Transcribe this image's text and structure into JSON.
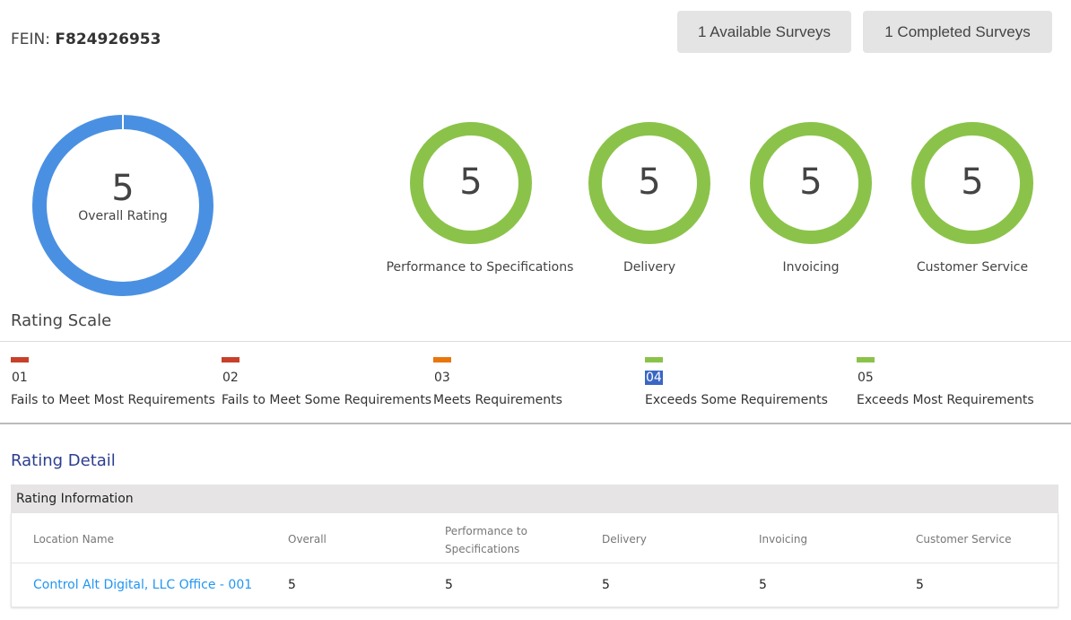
{
  "header": {
    "fein_label": "FEIN:",
    "fein_value": "F824926953",
    "available_surveys": "1 Available Surveys",
    "completed_surveys": "1 Completed Surveys"
  },
  "overall": {
    "value": "5",
    "label": "Overall Rating",
    "color": "#4a90e2"
  },
  "categories": [
    {
      "value": "5",
      "label": "Performance to Specifications"
    },
    {
      "value": "5",
      "label": "Delivery"
    },
    {
      "value": "5",
      "label": "Invoicing"
    },
    {
      "value": "5",
      "label": "Customer Service"
    }
  ],
  "rating_scale": {
    "title": "Rating Scale",
    "items": [
      {
        "num": "01",
        "label": "Fails to Meet Most Requirements",
        "color": "#c8402a"
      },
      {
        "num": "02",
        "label": "Fails to Meet Some Requirements",
        "color": "#c8402a"
      },
      {
        "num": "03",
        "label": "Meets Requirements",
        "color": "#e8760c"
      },
      {
        "num": "04",
        "label": "Exceeds Some Requirements",
        "color": "#8bc34a"
      },
      {
        "num": "05",
        "label": "Exceeds Most Requirements",
        "color": "#8bc34a"
      }
    ]
  },
  "detail": {
    "title": "Rating Detail",
    "section": "Rating Information",
    "columns": [
      "Location Name",
      "Overall",
      "Performance to Specifications",
      "Delivery",
      "Invoicing",
      "Customer Service"
    ],
    "rows": [
      [
        "Control Alt Digital, LLC Office - 001",
        "5",
        "5",
        "5",
        "5",
        "5"
      ]
    ]
  }
}
